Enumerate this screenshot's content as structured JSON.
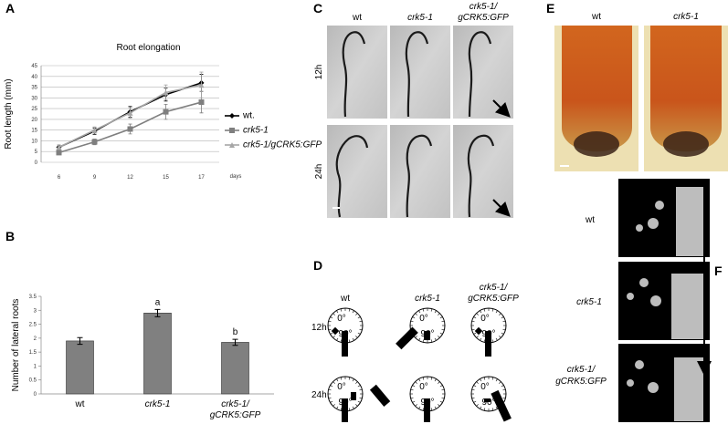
{
  "panel_letters": [
    "A",
    "B",
    "C",
    "D",
    "E",
    "F"
  ],
  "chart_data": [
    {
      "type": "line",
      "title": "Root elongation",
      "y_label": "Root length (mm)",
      "x_label": "days",
      "categories": [
        "6",
        "9",
        "12",
        "15",
        "17"
      ],
      "ylim": [
        0,
        45
      ],
      "yticks": [
        0,
        5,
        10,
        15,
        20,
        25,
        30,
        35,
        40,
        45
      ],
      "grid": true,
      "legend": "right",
      "series": [
        {
          "name": "wt.",
          "color": "#000000",
          "marker": "diamond",
          "values": [
            7,
            14.5,
            23.5,
            31.5,
            37
          ],
          "errors": [
            1,
            1.5,
            2.5,
            3,
            4
          ]
        },
        {
          "name": "crk5-1",
          "color": "#7f7f7f",
          "marker": "square",
          "values": [
            4.5,
            9.5,
            15.5,
            23.5,
            28
          ],
          "errors": [
            0.8,
            1.3,
            2.3,
            3.5,
            5
          ]
        },
        {
          "name": "crk5-1/gCRK5:GFP",
          "color": "#a6a6a6",
          "marker": "triangle",
          "values": [
            7,
            15,
            23,
            32.5,
            36
          ],
          "errors": [
            1,
            1.5,
            2.5,
            3.5,
            6
          ]
        }
      ]
    },
    {
      "type": "bar",
      "y_label": "Number of lateral roots",
      "categories": [
        "wt",
        "crk5-1",
        "crk5-1/ gCRK5:GFP"
      ],
      "values": [
        1.9,
        2.9,
        1.85
      ],
      "errors": [
        0.12,
        0.13,
        0.11
      ],
      "annotations": [
        null,
        "a",
        "b"
      ],
      "color": "#808080",
      "ylim": [
        0,
        3.5
      ],
      "yticks": [
        0,
        0.5,
        1,
        1.5,
        2,
        2.5,
        3,
        3.5
      ],
      "grid": false
    }
  ],
  "panel_c": {
    "columns": [
      "wt",
      "crk5-1",
      "crk5-1/ gCRK5:GFP"
    ],
    "rows": [
      "12h",
      "24h"
    ]
  },
  "panel_d": {
    "columns": [
      "wt",
      "crk5-1",
      "crk5-1/ gCRK5:GFP"
    ],
    "rows": [
      "12h",
      "24h"
    ],
    "dial_labels": [
      "0°",
      "90°"
    ]
  },
  "panel_e": {
    "columns": [
      "wt",
      "crk5-1"
    ]
  },
  "panel_f": {
    "rows": [
      "wt",
      "crk5-1",
      "crk5-1/ gCRK5:GFP"
    ]
  }
}
